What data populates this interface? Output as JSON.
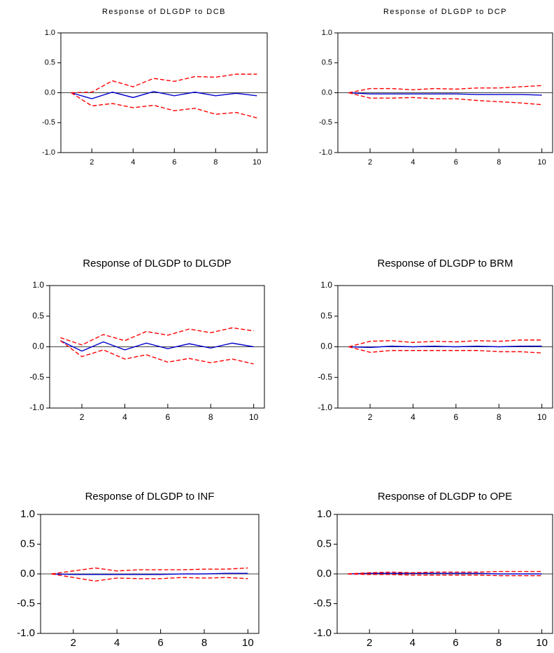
{
  "chart_data": [
    {
      "type": "line",
      "title": "Response of DLGDP to DCB",
      "x": [
        1,
        2,
        3,
        4,
        5,
        6,
        7,
        8,
        9,
        10
      ],
      "xlim": [
        0.5,
        10.5
      ],
      "xticks": [
        2,
        4,
        6,
        8,
        10
      ],
      "ylim": [
        -1,
        1
      ],
      "yticks": [
        {
          "value": -1,
          "label": "-1.0"
        },
        {
          "value": -0.5,
          "label": "-0.5"
        },
        {
          "value": 0,
          "label": "0.0"
        },
        {
          "value": 0.5,
          "label": "0.5"
        },
        {
          "value": 1,
          "label": "1.0"
        }
      ],
      "zero_line": true,
      "series": [
        {
          "color": "#0000cc",
          "dashed": false,
          "values": [
            0,
            -0.1,
            0.01,
            -0.08,
            0.02,
            -0.05,
            0.01,
            -0.05,
            -0.01,
            -0.05
          ]
        },
        {
          "color": "#ff0000",
          "dashed": true,
          "values": [
            0,
            0.01,
            0.2,
            0.1,
            0.24,
            0.19,
            0.27,
            0.26,
            0.31,
            0.31
          ]
        },
        {
          "color": "#ff0000",
          "dashed": true,
          "values": [
            0,
            -0.22,
            -0.18,
            -0.25,
            -0.21,
            -0.3,
            -0.26,
            -0.36,
            -0.33,
            -0.42
          ]
        }
      ]
    },
    {
      "type": "line",
      "title": "Response of DLGDP to DCP",
      "x": [
        1,
        2,
        3,
        4,
        5,
        6,
        7,
        8,
        9,
        10
      ],
      "xlim": [
        0.5,
        10.5
      ],
      "xticks": [
        2,
        4,
        6,
        8,
        10
      ],
      "ylim": [
        -1,
        1
      ],
      "yticks": [
        {
          "value": -1,
          "label": "-1.0"
        },
        {
          "value": -0.5,
          "label": "-0.5"
        },
        {
          "value": 0,
          "label": "0.0"
        },
        {
          "value": 0.5,
          "label": "0.5"
        },
        {
          "value": 1,
          "label": "1.0"
        }
      ],
      "zero_line": true,
      "series": [
        {
          "color": "#0000cc",
          "dashed": false,
          "values": [
            0,
            -0.02,
            -0.02,
            -0.02,
            -0.02,
            -0.02,
            -0.03,
            -0.03,
            -0.03,
            -0.04
          ]
        },
        {
          "color": "#ff0000",
          "dashed": true,
          "values": [
            0,
            0.07,
            0.07,
            0.05,
            0.07,
            0.06,
            0.08,
            0.08,
            0.1,
            0.12
          ]
        },
        {
          "color": "#ff0000",
          "dashed": true,
          "values": [
            0,
            -0.09,
            -0.09,
            -0.08,
            -0.1,
            -0.1,
            -0.13,
            -0.15,
            -0.17,
            -0.2
          ]
        }
      ]
    },
    {
      "type": "line",
      "title": "Response of DLGDP to DLGDP",
      "x": [
        1,
        2,
        3,
        4,
        5,
        6,
        7,
        8,
        9,
        10
      ],
      "xlim": [
        0.5,
        10.5
      ],
      "xticks": [
        2,
        4,
        6,
        8,
        10
      ],
      "ylim": [
        -1,
        1
      ],
      "yticks": [
        {
          "value": -1,
          "label": "-1.0"
        },
        {
          "value": -0.5,
          "label": "-0.5"
        },
        {
          "value": 0,
          "label": "0.0"
        },
        {
          "value": 0.5,
          "label": "0.5"
        },
        {
          "value": 1,
          "label": "1.0"
        }
      ],
      "zero_line": true,
      "series": [
        {
          "color": "#0000cc",
          "dashed": false,
          "values": [
            0.1,
            -0.07,
            0.08,
            -0.05,
            0.06,
            -0.03,
            0.05,
            -0.02,
            0.06,
            0
          ]
        },
        {
          "color": "#ff0000",
          "dashed": true,
          "values": [
            0.15,
            0.03,
            0.2,
            0.1,
            0.25,
            0.19,
            0.29,
            0.23,
            0.31,
            0.26
          ]
        },
        {
          "color": "#ff0000",
          "dashed": true,
          "values": [
            0.1,
            -0.16,
            -0.05,
            -0.2,
            -0.13,
            -0.25,
            -0.19,
            -0.26,
            -0.2,
            -0.28
          ]
        }
      ]
    },
    {
      "type": "line",
      "title": "Response of DLGDP to BRM",
      "x": [
        1,
        2,
        3,
        4,
        5,
        6,
        7,
        8,
        9,
        10
      ],
      "xlim": [
        0.5,
        10.5
      ],
      "xticks": [
        2,
        4,
        6,
        8,
        10
      ],
      "ylim": [
        -1,
        1
      ],
      "yticks": [
        {
          "value": -1,
          "label": "-1.0"
        },
        {
          "value": -0.5,
          "label": "-0.5"
        },
        {
          "value": 0,
          "label": "0.0"
        },
        {
          "value": 0.5,
          "label": "0.5"
        },
        {
          "value": 1,
          "label": "1.0"
        }
      ],
      "zero_line": true,
      "series": [
        {
          "color": "#0000cc",
          "dashed": false,
          "values": [
            0,
            -0.01,
            0.01,
            0,
            0.01,
            0,
            0.01,
            0,
            0.01,
            0.01
          ]
        },
        {
          "color": "#ff0000",
          "dashed": true,
          "values": [
            0,
            0.09,
            0.1,
            0.07,
            0.09,
            0.08,
            0.1,
            0.09,
            0.11,
            0.11
          ]
        },
        {
          "color": "#ff0000",
          "dashed": true,
          "values": [
            0,
            -0.09,
            -0.06,
            -0.06,
            -0.06,
            -0.06,
            -0.06,
            -0.08,
            -0.08,
            -0.1
          ]
        }
      ]
    },
    {
      "type": "line",
      "title": "Response of DLGDP to INF",
      "x": [
        1,
        2,
        3,
        4,
        5,
        6,
        7,
        8,
        9,
        10
      ],
      "xlim": [
        0.5,
        10.5
      ],
      "xticks": [
        2,
        4,
        6,
        8,
        10
      ],
      "ylim": [
        -1,
        1
      ],
      "yticks": [
        {
          "value": -1,
          "label": "-1.0"
        },
        {
          "value": -0.5,
          "label": "-0.5"
        },
        {
          "value": 0,
          "label": "0.0"
        },
        {
          "value": 0.5,
          "label": "0.5"
        },
        {
          "value": 1,
          "label": "1.0"
        }
      ],
      "zero_line": true,
      "series": [
        {
          "color": "#0000cc",
          "dashed": false,
          "values": [
            0,
            -0.01,
            -0.01,
            -0.01,
            -0.01,
            -0.01,
            0,
            0,
            0.01,
            0.01
          ]
        },
        {
          "color": "#ff0000",
          "dashed": true,
          "values": [
            0,
            0.05,
            0.1,
            0.05,
            0.07,
            0.07,
            0.07,
            0.08,
            0.08,
            0.1
          ]
        },
        {
          "color": "#ff0000",
          "dashed": true,
          "values": [
            0,
            -0.06,
            -0.12,
            -0.07,
            -0.08,
            -0.08,
            -0.06,
            -0.07,
            -0.06,
            -0.08
          ]
        }
      ]
    },
    {
      "type": "line",
      "title": "Response of DLGDP to OPE",
      "x": [
        1,
        2,
        3,
        4,
        5,
        6,
        7,
        8,
        9,
        10
      ],
      "xlim": [
        0.5,
        10.5
      ],
      "xticks": [
        2,
        4,
        6,
        8,
        10
      ],
      "ylim": [
        -1,
        1
      ],
      "yticks": [
        {
          "value": -1,
          "label": "-1.0"
        },
        {
          "value": -0.5,
          "label": "-0.5"
        },
        {
          "value": 0,
          "label": "0.0"
        },
        {
          "value": 0.5,
          "label": "0.5"
        },
        {
          "value": 1,
          "label": "1.0"
        }
      ],
      "zero_line": true,
      "series": [
        {
          "color": "#0000cc",
          "dashed": false,
          "values": [
            0,
            0.01,
            0.01,
            0.01,
            0.01,
            0.01,
            0.01,
            0,
            0,
            0
          ]
        },
        {
          "color": "#ff0000",
          "dashed": true,
          "values": [
            0,
            0.02,
            0.03,
            0.02,
            0.03,
            0.03,
            0.03,
            0.04,
            0.04,
            0.04
          ]
        },
        {
          "color": "#ff0000",
          "dashed": true,
          "values": [
            0,
            -0.01,
            -0.01,
            -0.02,
            -0.02,
            -0.02,
            -0.02,
            -0.03,
            -0.03,
            -0.03
          ]
        }
      ]
    }
  ]
}
